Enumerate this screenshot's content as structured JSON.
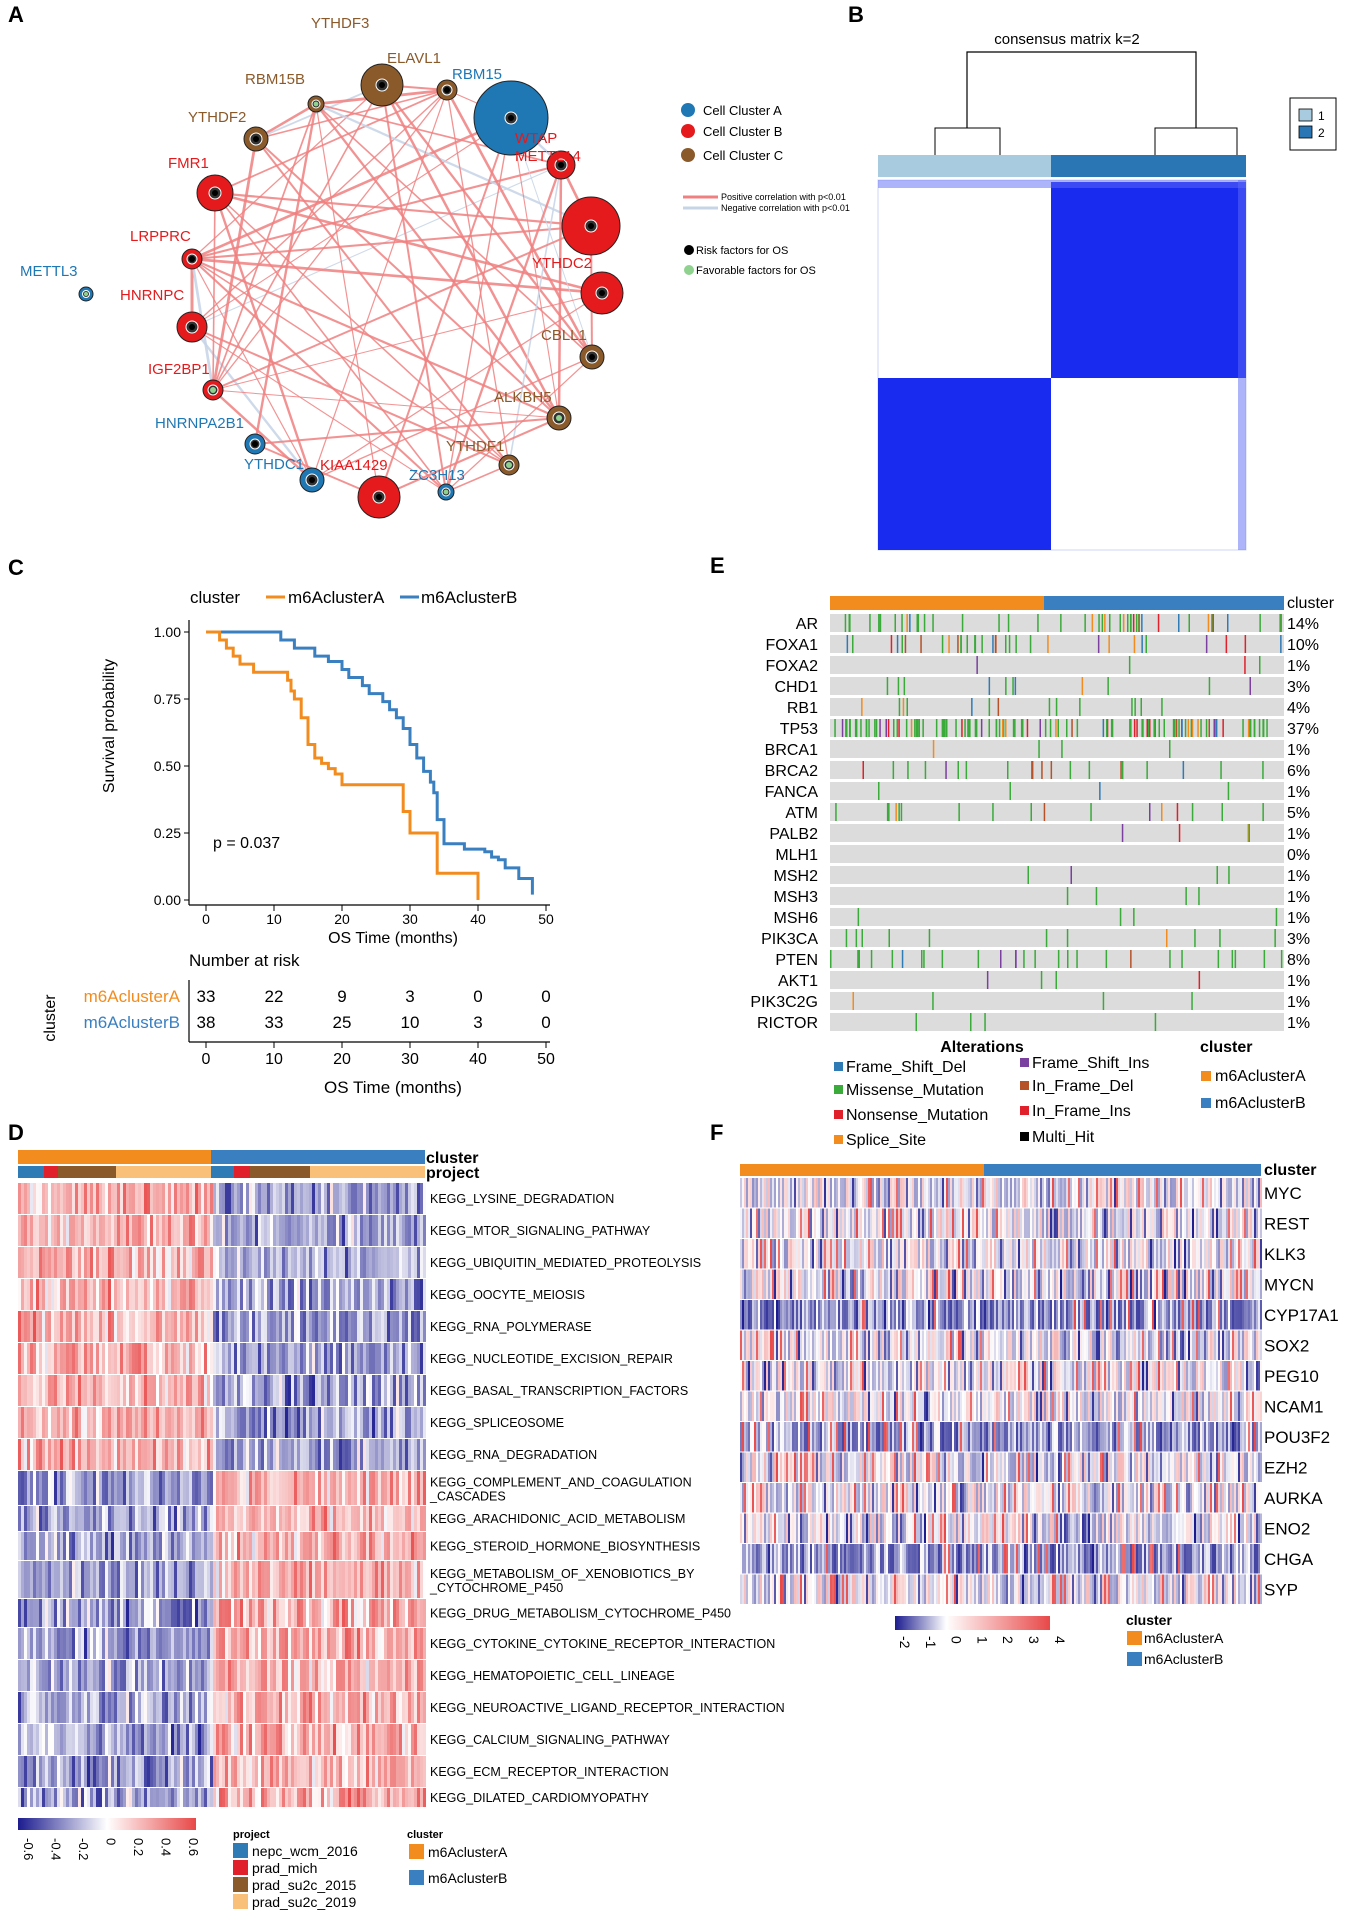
{
  "panels": {
    "A": "A",
    "B": "B",
    "C": "C",
    "D": "D",
    "E": "E",
    "F": "F"
  },
  "colors": {
    "clusterA": "#1f77b4",
    "clusterB": "#e41a1c",
    "clusterC": "#8b5a2b",
    "pos": "#f08080",
    "neg": "#c6d4e6",
    "orange": "#f28c1e",
    "blue": "#3a7fc0",
    "heatBlue": "#1c1c8f",
    "heatRed": "#e84848"
  },
  "panelA": {
    "nodes": [
      {
        "name": "METTL3",
        "cluster": "A",
        "factor": "favorable"
      },
      {
        "name": "HNRNPC",
        "cluster": "B",
        "factor": "risk"
      },
      {
        "name": "LRPPRC",
        "cluster": "B",
        "factor": "risk"
      },
      {
        "name": "FMR1",
        "cluster": "B",
        "factor": "risk"
      },
      {
        "name": "YTHDF2",
        "cluster": "C",
        "factor": "risk"
      },
      {
        "name": "RBM15B",
        "cluster": "C",
        "factor": "favorable"
      },
      {
        "name": "YTHDF3",
        "cluster": "C",
        "factor": "risk"
      },
      {
        "name": "ELAVL1",
        "cluster": "C",
        "factor": "risk"
      },
      {
        "name": "RBM15",
        "cluster": "A",
        "factor": "risk"
      },
      {
        "name": "WTAP",
        "cluster": "B",
        "factor": "risk"
      },
      {
        "name": "METTL14",
        "cluster": "B",
        "factor": "risk"
      },
      {
        "name": "YTHDC2",
        "cluster": "B",
        "factor": "risk"
      },
      {
        "name": "CBLL1",
        "cluster": "C",
        "factor": "risk"
      },
      {
        "name": "ALKBH5",
        "cluster": "C",
        "factor": "favorable"
      },
      {
        "name": "YTHDF1",
        "cluster": "C",
        "factor": "favorable"
      },
      {
        "name": "ZC3H13",
        "cluster": "A",
        "factor": "favorable"
      },
      {
        "name": "KIAA1429",
        "cluster": "B",
        "factor": "risk"
      },
      {
        "name": "YTHDC1",
        "cluster": "A",
        "factor": "risk"
      },
      {
        "name": "HNRNPA2B1",
        "cluster": "A",
        "factor": "risk"
      },
      {
        "name": "IGF2BP1",
        "cluster": "B",
        "factor": "favorable"
      }
    ],
    "legend": {
      "clusterA": "Cell Cluster A",
      "clusterB": "Cell Cluster B",
      "clusterC": "Cell Cluster C",
      "pos": "Positive correlation with p<0.01",
      "neg": "Negative correlation with p<0.01",
      "risk": "Risk factors for OS",
      "favorable": "Favorable factors for OS"
    }
  },
  "panelB": {
    "title": "consensus matrix k=2",
    "legend": [
      "1",
      "2"
    ]
  },
  "panelC": {
    "legend_title": "cluster",
    "series": [
      "m6AclusterA",
      "m6AclusterB"
    ],
    "ylabel": "Survival probability",
    "yticks": [
      "0.00",
      "0.25",
      "0.50",
      "0.75",
      "1.00"
    ],
    "xticks": [
      "0",
      "10",
      "20",
      "30",
      "40",
      "50"
    ],
    "xlabel": "OS Time (months)",
    "pvalue": "p = 0.037",
    "risk_title": "Number at risk",
    "risk_ylabel": "cluster",
    "risk_rows": [
      [
        "33",
        "22",
        "9",
        "3",
        "0",
        "0"
      ],
      [
        "38",
        "33",
        "25",
        "10",
        "3",
        "0"
      ]
    ]
  },
  "panelD": {
    "cluster_label": "cluster",
    "project_label": "project",
    "rows": [
      "KEGG_LYSINE_DEGRADATION",
      "KEGG_MTOR_SIGNALING_PATHWAY",
      "KEGG_UBIQUITIN_MEDIATED_PROTEOLYSIS",
      "KEGG_OOCYTE_MEIOSIS",
      "KEGG_RNA_POLYMERASE",
      "KEGG_NUCLEOTIDE_EXCISION_REPAIR",
      "KEGG_BASAL_TRANSCRIPTION_FACTORS",
      "KEGG_SPLICEOSOME",
      "KEGG_RNA_DEGRADATION",
      "KEGG_COMPLEMENT_AND_COAGULATION|_CASCADES",
      "KEGG_ARACHIDONIC_ACID_METABOLISM",
      "KEGG_STEROID_HORMONE_BIOSYNTHESIS",
      "KEGG_METABOLISM_OF_XENOBIOTICS_BY|_CYTOCHROME_P450",
      "KEGG_DRUG_METABOLISM_CYTOCHROME_P450",
      "KEGG_CYTOKINE_CYTOKINE_RECEPTOR_INTERACTION",
      "KEGG_HEMATOPOIETIC_CELL_LINEAGE",
      "KEGG_NEUROACTIVE_LIGAND_RECEPTOR_INTERACTION",
      "KEGG_CALCIUM_SIGNALING_PATHWAY",
      "KEGG_ECM_RECEPTOR_INTERACTION",
      "KEGG_DILATED_CARDIOMYOPATHY"
    ],
    "colorbar_ticks": [
      "-0.6",
      "-0.4",
      "-0.2",
      "0",
      "0.2",
      "0.4",
      "0.6"
    ],
    "project_legend_title": "project",
    "projects": [
      "nepc_wcm_2016",
      "prad_mich",
      "prad_su2c_2015",
      "prad_su2c_2019"
    ],
    "cluster_legend_title": "cluster",
    "clusters": [
      "m6AclusterA",
      "m6AclusterB"
    ]
  },
  "panelE": {
    "cluster_label": "cluster",
    "genes": [
      "AR",
      "FOXA1",
      "FOXA2",
      "CHD1",
      "RB1",
      "TP53",
      "BRCA1",
      "BRCA2",
      "FANCA",
      "ATM",
      "PALB2",
      "MLH1",
      "MSH2",
      "MSH3",
      "MSH6",
      "PIK3CA",
      "PTEN",
      "AKT1",
      "PIK3C2G",
      "RICTOR"
    ],
    "pcts": [
      "14%",
      "10%",
      "1%",
      "3%",
      "4%",
      "37%",
      "1%",
      "6%",
      "1%",
      "5%",
      "1%",
      "0%",
      "1%",
      "1%",
      "1%",
      "3%",
      "8%",
      "1%",
      "1%",
      "1%"
    ],
    "alterations_title": "Alterations",
    "alterations": [
      "Frame_Shift_Del",
      "Missense_Mutation",
      "Nonsense_Mutation",
      "Splice_Site",
      "Frame_Shift_Ins",
      "In_Frame_Del",
      "In_Frame_Ins",
      "Multi_Hit"
    ],
    "cluster_legend_title": "cluster",
    "clusters": [
      "m6AclusterA",
      "m6AclusterB"
    ]
  },
  "panelF": {
    "cluster_label": "cluster",
    "genes": [
      "MYC",
      "REST",
      "KLK3",
      "MYCN",
      "CYP17A1",
      "SOX2",
      "PEG10",
      "NCAM1",
      "POU3F2",
      "EZH2",
      "AURKA",
      "ENO2",
      "CHGA",
      "SYP"
    ],
    "colorbar_ticks": [
      "-2",
      "-1",
      "0",
      "1",
      "2",
      "3",
      "4"
    ],
    "cluster_legend_title": "cluster",
    "clusters": [
      "m6AclusterA",
      "m6AclusterB"
    ]
  }
}
